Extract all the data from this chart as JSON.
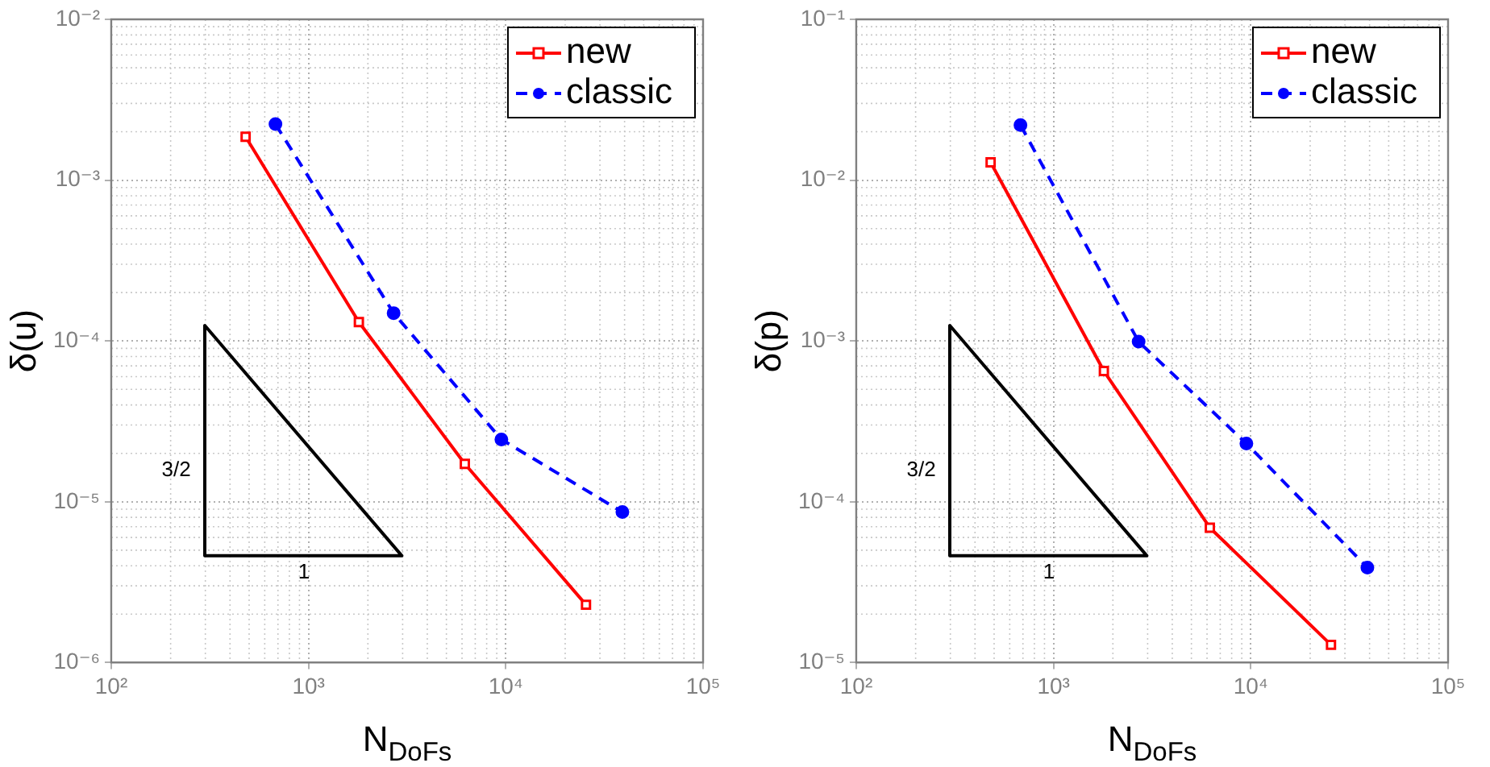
{
  "chart_data": [
    {
      "type": "line",
      "xlabel": "N$_{DoFs}$",
      "ylabel": "δ(u)",
      "log": "xy",
      "grid": true,
      "legend": "top right",
      "xlim": [
        100,
        100000
      ],
      "xticks": [
        {
          "value": 100,
          "label": "10²"
        },
        {
          "value": 1000,
          "label": "10³"
        },
        {
          "value": 10000,
          "label": "10⁴"
        },
        {
          "value": 100000,
          "label": "10⁵"
        }
      ],
      "ylim": [
        1e-06,
        0.01
      ],
      "yticks": [
        {
          "value": 1e-06,
          "label": "10⁻⁶"
        },
        {
          "value": 1e-05,
          "label": "10⁻⁵"
        },
        {
          "value": 0.0001,
          "label": "10⁻⁴"
        },
        {
          "value": 0.001,
          "label": "10⁻³"
        },
        {
          "value": 0.01,
          "label": "10⁻²"
        }
      ],
      "series": [
        {
          "name": "new",
          "color": "#ff0000",
          "marker": "square",
          "line_style": "solid",
          "x": [
            480,
            1800,
            6200,
            25500
          ],
          "values": [
            0.00186,
            0.000131,
            1.72e-05,
            2.29e-06
          ]
        },
        {
          "name": "classic",
          "color": "#0000ff",
          "marker": "circle",
          "line_style": "dashed",
          "x": [
            680,
            2700,
            9500,
            39000
          ],
          "values": [
            0.00223,
            0.000149,
            2.44e-05,
            8.63e-06
          ]
        }
      ],
      "annotations": [
        "3/2",
        "1"
      ]
    },
    {
      "type": "line",
      "xlabel": "N$_{DoFs}$",
      "ylabel": "δ(p)",
      "log": "xy",
      "grid": true,
      "legend": "top right",
      "xlim": [
        100,
        100000
      ],
      "xticks": [
        {
          "value": 100,
          "label": "10²"
        },
        {
          "value": 1000,
          "label": "10³"
        },
        {
          "value": 10000,
          "label": "10⁴"
        },
        {
          "value": 100000,
          "label": "10⁵"
        }
      ],
      "ylim": [
        1e-05,
        0.1
      ],
      "yticks": [
        {
          "value": 1e-05,
          "label": "10⁻⁵"
        },
        {
          "value": 0.0001,
          "label": "10⁻⁴"
        },
        {
          "value": 0.001,
          "label": "10⁻³"
        },
        {
          "value": 0.01,
          "label": "10⁻²"
        },
        {
          "value": 0.1,
          "label": "10⁻¹"
        }
      ],
      "series": [
        {
          "name": "new",
          "color": "#ff0000",
          "marker": "square",
          "line_style": "solid",
          "x": [
            480,
            1800,
            6200,
            25500
          ],
          "values": [
            0.0129,
            0.00065,
            6.9e-05,
            1.29e-05
          ]
        },
        {
          "name": "classic",
          "color": "#0000ff",
          "marker": "circle",
          "line_style": "dashed",
          "x": [
            680,
            2700,
            9500,
            39000
          ],
          "values": [
            0.022,
            0.00099,
            0.00023,
            3.9e-05
          ]
        }
      ],
      "annotations": [
        "3/2",
        "1"
      ]
    }
  ]
}
